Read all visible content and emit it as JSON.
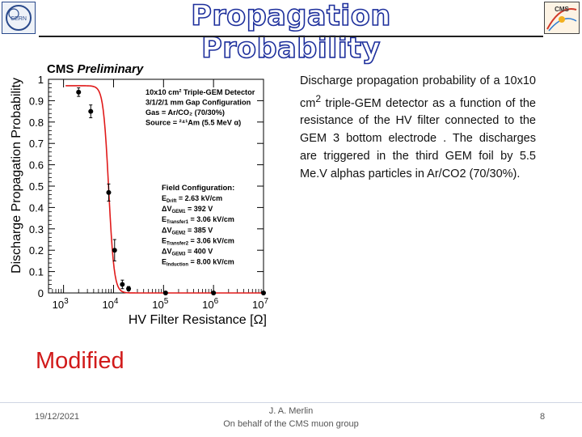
{
  "slide": {
    "title": "Propagation Probability",
    "modified_label": "Modified",
    "description_parts": {
      "p1": "Discharge propagation probability of a 10x10 cm",
      "sup": "2",
      "p2": " triple-GEM detector as a function of the resistance of the HV filter connected to the GEM 3 bottom electrode . The discharges are triggered in the third GEM foil by 5.5 Me.V alphas particles in Ar/CO2 (70/30%)."
    },
    "logos": {
      "left": "CERN",
      "right": "CMS"
    }
  },
  "footer": {
    "date": "19/12/2021",
    "author": "J. A. Merlin",
    "affiliation": "On behalf of the CMS muon group",
    "page": "8"
  },
  "chart_data": {
    "type": "scatter",
    "header": "CMS",
    "header_italic": "Preliminary",
    "xlabel": "HV Filter Resistance [Ω]",
    "ylabel": "Discharge Propagation Probability",
    "x_scale": "log",
    "xlim": [
      500,
      10000000
    ],
    "ylim": [
      0,
      1
    ],
    "x_ticks": [
      {
        "value": 1000,
        "base": "10",
        "exp": "3"
      },
      {
        "value": 10000,
        "base": "10",
        "exp": "4"
      },
      {
        "value": 100000,
        "base": "10",
        "exp": "5"
      },
      {
        "value": 1000000,
        "base": "10",
        "exp": "6"
      },
      {
        "value": 10000000,
        "base": "10",
        "exp": "7"
      }
    ],
    "y_ticks": [
      "0",
      "0.1",
      "0.2",
      "0.3",
      "0.4",
      "0.5",
      "0.6",
      "0.7",
      "0.8",
      "0.9",
      "1"
    ],
    "grid": false,
    "points": [
      {
        "x": 2000,
        "y": 0.94,
        "err": 0.02
      },
      {
        "x": 3500,
        "y": 0.85,
        "err": 0.03
      },
      {
        "x": 8000,
        "y": 0.47,
        "err": 0.04
      },
      {
        "x": 10500,
        "y": 0.2,
        "err": 0.05
      },
      {
        "x": 15000,
        "y": 0.04,
        "err": 0.02
      },
      {
        "x": 20000,
        "y": 0.02,
        "err": 0.01
      },
      {
        "x": 110000,
        "y": 0.0,
        "err": 0.0
      },
      {
        "x": 1000000,
        "y": 0.0,
        "err": 0.0
      },
      {
        "x": 10000000,
        "y": 0.0,
        "err": 0.0
      }
    ],
    "fit_color": "#e01a1a",
    "fit": {
      "x0": 8000,
      "slope": 8
    },
    "info_box": [
      "10x10 cm² Triple-GEM Detector",
      "3/1/2/1 mm Gap Configuration",
      "Gas = Ar/CO₂ (70/30%)",
      "Source = ²⁴¹Am (5.5 MeV α)"
    ],
    "field_title": "Field Configuration:",
    "field_lines": [
      {
        "name": "E",
        "sub": "Drift",
        "value": " = 2.63 kV/cm"
      },
      {
        "name": "ΔV",
        "sub": "GEM1",
        "value": " = 392 V"
      },
      {
        "name": "E",
        "sub": "Transfer1",
        "value": " = 3.06 kV/cm"
      },
      {
        "name": "ΔV",
        "sub": "GEM2",
        "value": " = 385 V"
      },
      {
        "name": "E",
        "sub": "Transfer2",
        "value": " = 3.06 kV/cm"
      },
      {
        "name": "ΔV",
        "sub": "GEM3",
        "value": " = 400 V"
      },
      {
        "name": "E",
        "sub": "Induction",
        "value": " = 8.00 kV/cm"
      }
    ]
  }
}
